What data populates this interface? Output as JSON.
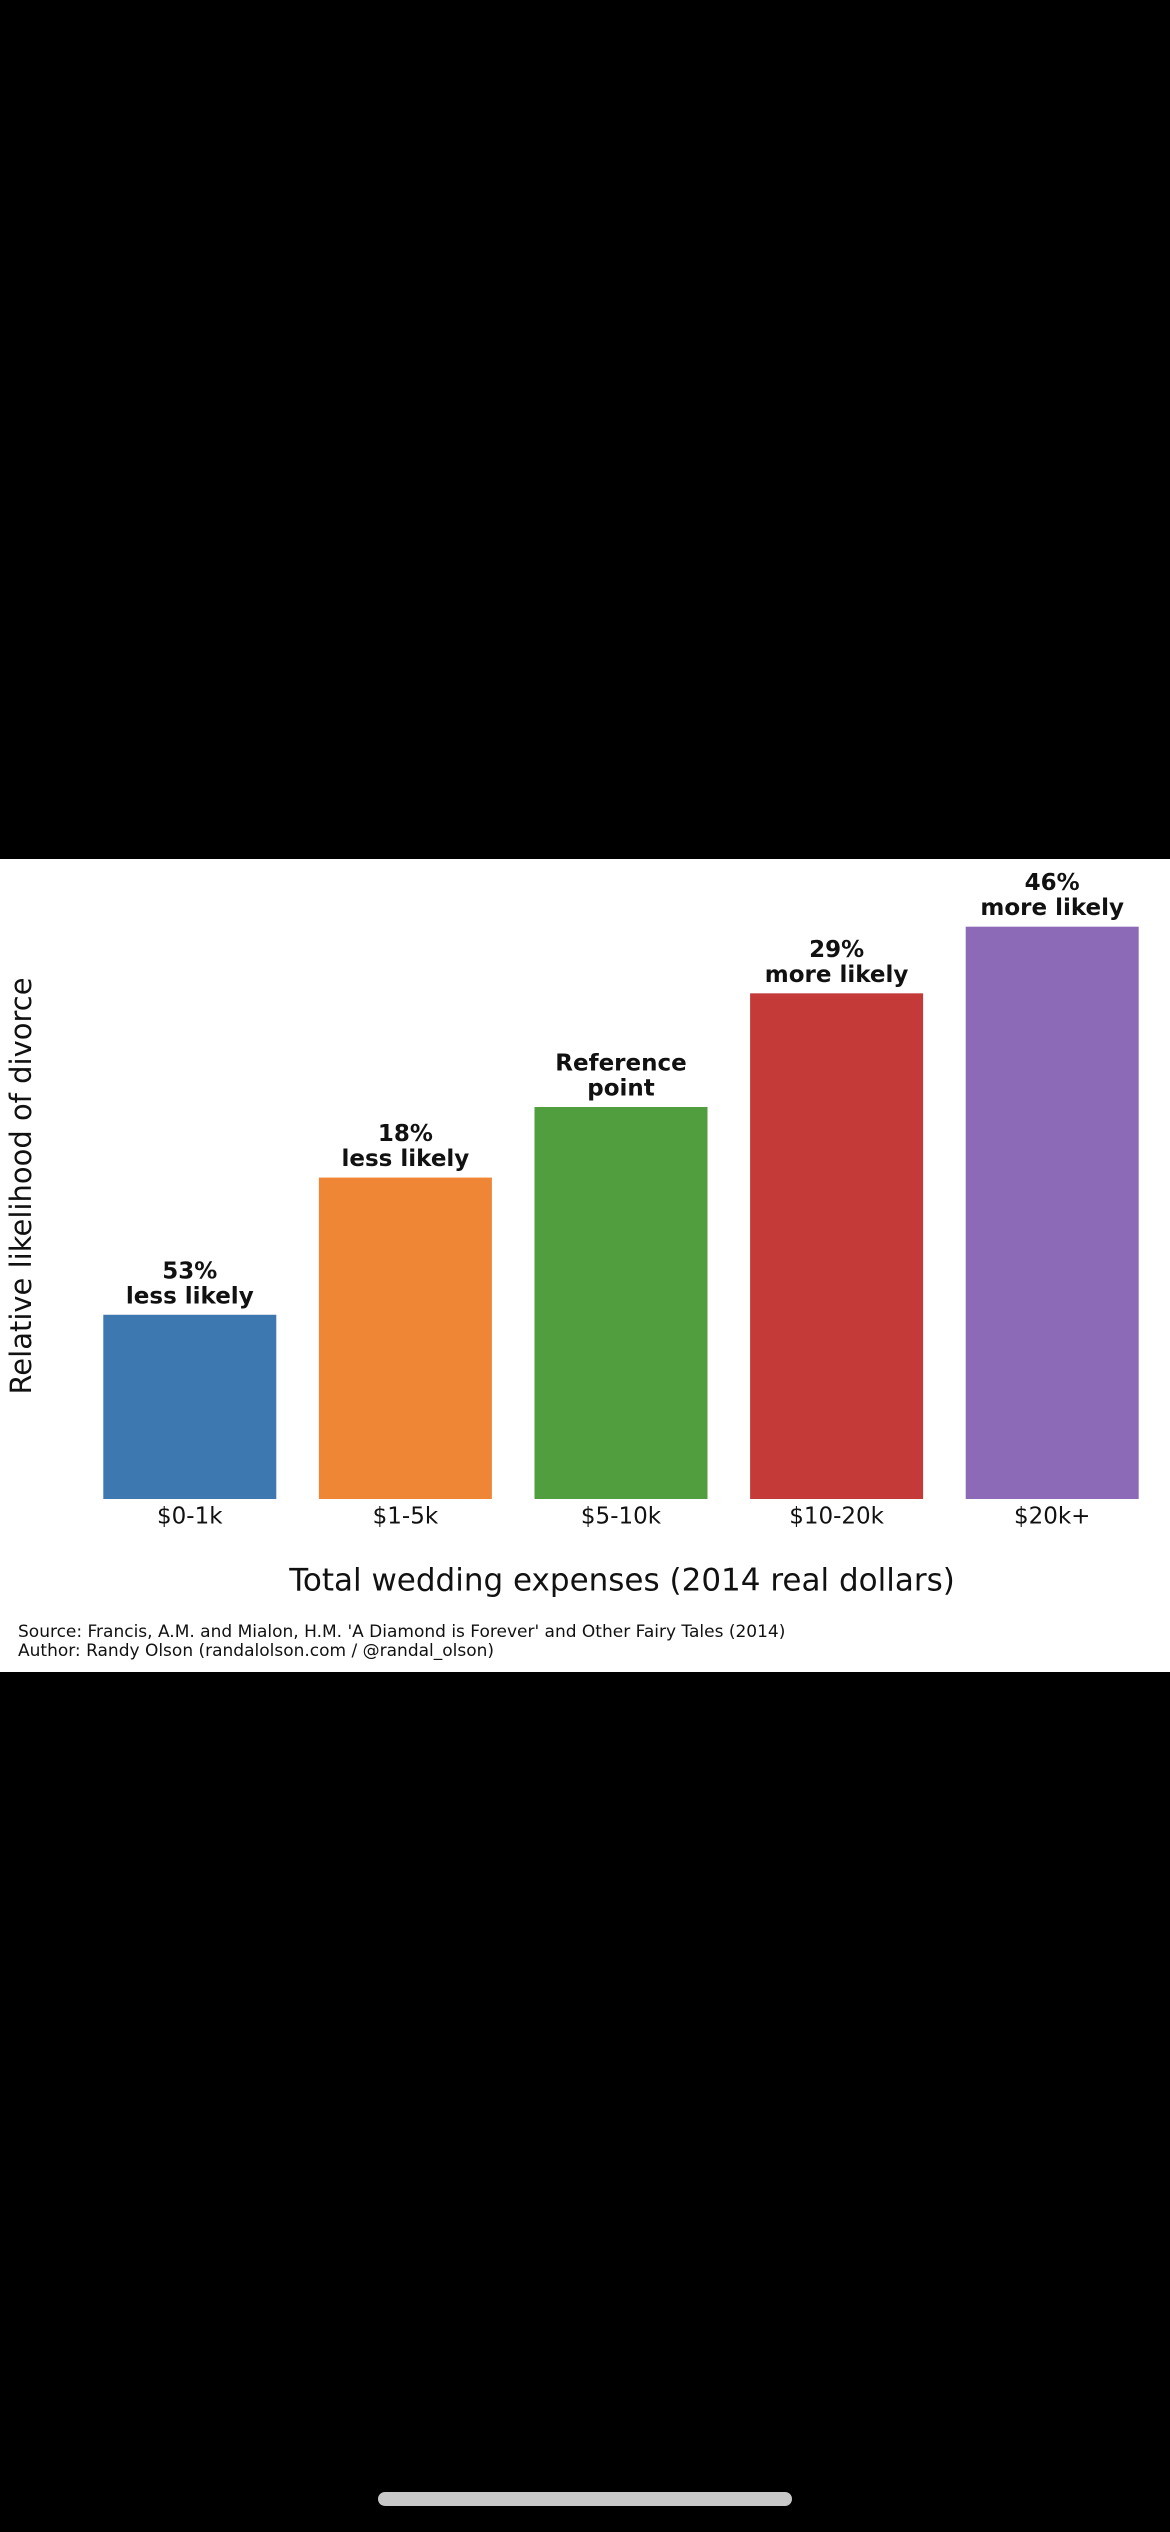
{
  "chart_data": {
    "type": "bar",
    "y_label": "Relative likelihood of divorce",
    "x_label": "Total wedding expenses (2014 real dollars)",
    "categories": [
      "$0-1k",
      "$1-5k",
      "$5-10k",
      "$10-20k",
      "$20k+"
    ],
    "values": [
      0.47,
      0.82,
      1,
      1.29,
      1.46
    ],
    "value_labels": [
      [
        "53%",
        "less likely"
      ],
      [
        "18%",
        "less likely"
      ],
      [
        "Reference",
        "point"
      ],
      [
        "29%",
        "more likely"
      ],
      [
        "46%",
        "more likely"
      ]
    ],
    "colors": [
      "#3d78b1",
      "#ee8636",
      "#519e3e",
      "#c43a39",
      "#8d6ab8"
    ],
    "ylim": [
      0,
      1.5
    ],
    "source": "Source: Francis, A.M. and Mialon, H.M. 'A Diamond is Forever' and Other Fairy Tales (2014)",
    "author": "Author: Randy Olson (randalolson.com / @randal_olson)"
  }
}
